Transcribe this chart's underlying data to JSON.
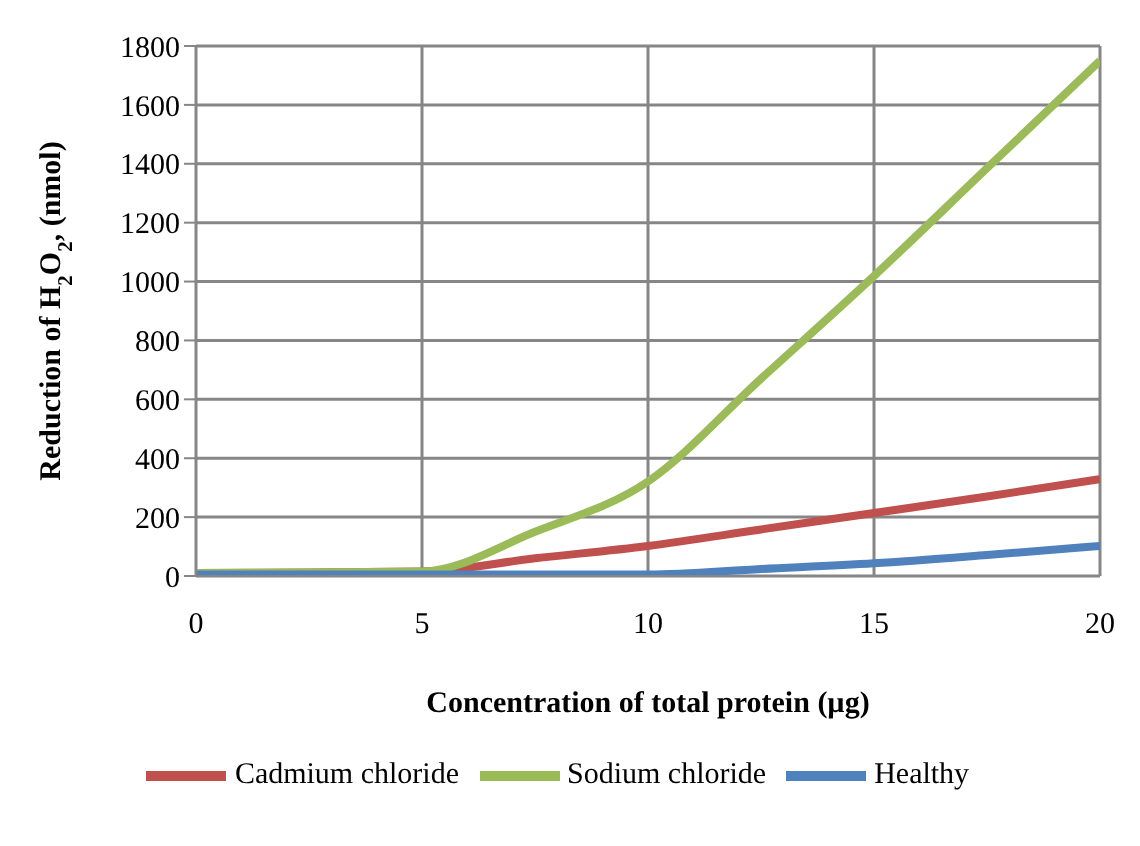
{
  "chart_data": {
    "type": "line",
    "xlabel": "Concentration of total protein (µg)",
    "ylabel": "Reduction of H$_{2}$O$_{2}$, (nmol)",
    "x": [
      0,
      2.5,
      5,
      7.5,
      10,
      12.5,
      15,
      17.5,
      20
    ],
    "series": [
      {
        "name": "Cadmium chloride",
        "color": "#c0504d",
        "values": [
          10,
          12,
          15,
          60,
          102,
          158,
          214,
          270,
          329
        ]
      },
      {
        "name": "Sodium chloride",
        "color": "#9bbb59",
        "values": [
          10,
          12,
          15,
          150,
          321,
          670,
          1019,
          1385,
          1750
        ]
      },
      {
        "name": "Healthy",
        "color": "#4f81bd",
        "values": [
          5,
          5,
          5,
          5,
          5,
          24,
          43,
          71,
          102
        ]
      }
    ],
    "xlim": [
      0,
      20
    ],
    "xticks": [
      0,
      5,
      10,
      15,
      20
    ],
    "ylim": [
      0,
      1800
    ],
    "yticks": [
      0,
      200,
      400,
      600,
      800,
      1000,
      1200,
      1400,
      1600,
      1800
    ],
    "grid": true,
    "legend": "bottom",
    "marker": "none",
    "line_style": "solid"
  }
}
